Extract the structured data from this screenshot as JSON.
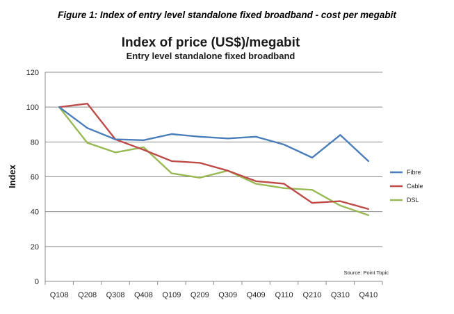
{
  "figure_caption": "Figure 1: Index of entry level standalone fixed broadband - cost per megabit",
  "chart_data": {
    "type": "line",
    "title": "Index of price (US$)/megabit",
    "subtitle": "Entry level standalone fixed broadband",
    "xlabel": "",
    "ylabel": "Index",
    "ylim": [
      0,
      120
    ],
    "yticks": [
      0,
      20,
      40,
      60,
      80,
      100,
      120
    ],
    "grid": true,
    "legend_position": "right",
    "source": "Source: Point Topic",
    "categories": [
      "Q108",
      "Q208",
      "Q308",
      "Q408",
      "Q109",
      "Q209",
      "Q309",
      "Q409",
      "Q110",
      "Q210",
      "Q310",
      "Q410"
    ],
    "series": [
      {
        "name": "Fibre",
        "color": "#4a7ebb",
        "values": [
          100,
          88,
          81.5,
          81,
          84.5,
          83,
          82,
          83,
          78.5,
          71,
          84,
          69
        ]
      },
      {
        "name": "Cable",
        "color": "#be4b48",
        "values": [
          100,
          102,
          81.5,
          75.5,
          69,
          68,
          63.5,
          57.5,
          56,
          45,
          46,
          41.5
        ]
      },
      {
        "name": "DSL",
        "color": "#98b954",
        "values": [
          100,
          79.5,
          74,
          77,
          62,
          59.5,
          63.5,
          56,
          53.5,
          52.5,
          43.5,
          38
        ]
      }
    ]
  }
}
